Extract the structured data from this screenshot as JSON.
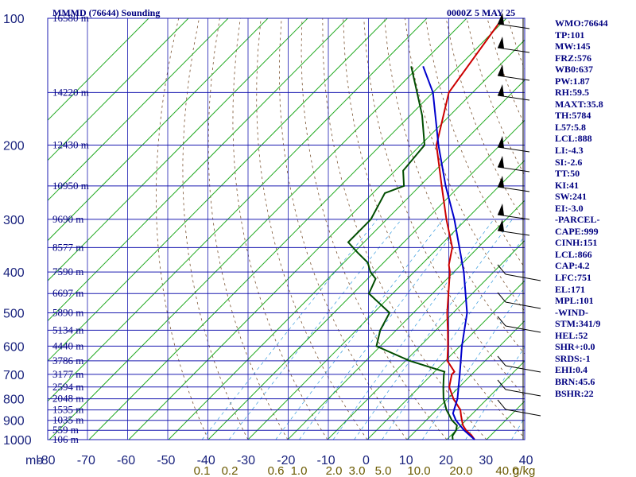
{
  "title_left": "MMMD (76644) Sounding",
  "title_right": "0000Z  5 MAY 25",
  "stats": [
    "WMO:76644",
    "TP:101",
    "MW:145",
    "FRZ:576",
    "WB0:637",
    "PW:1.87",
    "RH:59.5",
    "MAXT:35.8",
    "TH:5784",
    "L57:5.8",
    "LCL:888",
    "LI:-4.3",
    "SI:-2.6",
    "TT:50",
    "KI:41",
    "SW:241",
    "EI:-3.0",
    "-PARCEL-",
    "CAPE:999",
    "CINH:151",
    "LCL:866",
    "CAP:4.2",
    "LFC:751",
    "EL:171",
    "MPL:101",
    "-WIND-",
    "STM:341/9",
    "HEL:52",
    "SHR+:0.0",
    "SRDS:-1",
    "EHI:0.4",
    "BRN:45.6",
    "BSHR:22"
  ],
  "chart_data": {
    "type": "line",
    "chart_kind": "Skew-T log-P sounding",
    "y_axis_unit": "mb",
    "y_log_scale": true,
    "pressure_ticks": [
      100,
      200,
      300,
      400,
      500,
      600,
      700,
      800,
      900,
      1000
    ],
    "height_labels": [
      {
        "p": 100,
        "text": "16580 m"
      },
      {
        "p": 150,
        "text": "14220 m"
      },
      {
        "p": 200,
        "text": "12430 m"
      },
      {
        "p": 250,
        "text": "10950 m"
      },
      {
        "p": 300,
        "text": "9690 m"
      },
      {
        "p": 350,
        "text": "8577 m"
      },
      {
        "p": 400,
        "text": "7590 m"
      },
      {
        "p": 450,
        "text": "6697 m"
      },
      {
        "p": 500,
        "text": "5890 m"
      },
      {
        "p": 550,
        "text": "5134 m"
      },
      {
        "p": 600,
        "text": "4440 m"
      },
      {
        "p": 650,
        "text": "3786 m"
      },
      {
        "p": 700,
        "text": "3177 m"
      },
      {
        "p": 750,
        "text": "2594 m"
      },
      {
        "p": 800,
        "text": "2048 m"
      },
      {
        "p": 850,
        "text": "1535 m"
      },
      {
        "p": 900,
        "text": "1035 m"
      },
      {
        "p": 950,
        "text": "559 m"
      },
      {
        "p": 1000,
        "text": "106 m"
      }
    ],
    "x_axis_unit_label": "mb",
    "temperature_ticks": [
      -80,
      -70,
      -60,
      -50,
      -40,
      -30,
      -20,
      -10,
      0,
      10,
      20,
      30,
      40
    ],
    "mixing_ratio_label_unit": "g/kg",
    "mixing_ratio_labels": [
      "0.1",
      "0.2",
      "0.6",
      "1.0",
      "2.0",
      "3.0",
      "5.0",
      "10.0",
      "20.0",
      "40.0"
    ],
    "grid": true,
    "series": [
      {
        "name": "temperature",
        "color": "#cc0000",
        "points": [
          [
            1000,
            27.0
          ],
          [
            975,
            25.0
          ],
          [
            950,
            22.5
          ],
          [
            925,
            20.5
          ],
          [
            900,
            19.0
          ],
          [
            875,
            17.5
          ],
          [
            850,
            16.0
          ],
          [
            800,
            11.5
          ],
          [
            750,
            7.5
          ],
          [
            700,
            5.0
          ],
          [
            690,
            5.0
          ],
          [
            650,
            0.5
          ],
          [
            600,
            -3.0
          ],
          [
            550,
            -7.0
          ],
          [
            500,
            -11.5
          ],
          [
            450,
            -16.0
          ],
          [
            400,
            -21.0
          ],
          [
            385,
            -23.0
          ],
          [
            350,
            -26.5
          ],
          [
            300,
            -35.0
          ],
          [
            250,
            -44.5
          ],
          [
            200,
            -56.0
          ],
          [
            150,
            -66.0
          ],
          [
            100,
            -71.0
          ]
        ]
      },
      {
        "name": "parcel",
        "color": "#0000cc",
        "points": [
          [
            1000,
            27.0
          ],
          [
            950,
            22.0
          ],
          [
            900,
            17.5
          ],
          [
            866,
            15.0
          ],
          [
            800,
            12.5
          ],
          [
            700,
            7.0
          ],
          [
            600,
            0.5
          ],
          [
            500,
            -6.5
          ],
          [
            400,
            -17.5
          ],
          [
            300,
            -33.0
          ],
          [
            250,
            -43.5
          ],
          [
            200,
            -55.5
          ],
          [
            150,
            -70.0
          ],
          [
            130,
            -79.0
          ]
        ]
      },
      {
        "name": "dewpoint",
        "color": "#004d00",
        "points": [
          [
            1000,
            21.5
          ],
          [
            980,
            20.5
          ],
          [
            950,
            20.0
          ],
          [
            925,
            19.0
          ],
          [
            900,
            16.5
          ],
          [
            850,
            12.5
          ],
          [
            800,
            9.0
          ],
          [
            750,
            6.0
          ],
          [
            700,
            3.0
          ],
          [
            690,
            2.5
          ],
          [
            650,
            -9.0
          ],
          [
            600,
            -21.0
          ],
          [
            550,
            -24.0
          ],
          [
            500,
            -26.0
          ],
          [
            450,
            -36.0
          ],
          [
            415,
            -38.0
          ],
          [
            400,
            -41.0
          ],
          [
            380,
            -44.0
          ],
          [
            360,
            -49.0
          ],
          [
            340,
            -54.0
          ],
          [
            300,
            -54.0
          ],
          [
            260,
            -57.0
          ],
          [
            250,
            -54.0
          ],
          [
            230,
            -58.0
          ],
          [
            200,
            -59.0
          ],
          [
            170,
            -67.0
          ],
          [
            150,
            -74.0
          ],
          [
            130,
            -82.0
          ]
        ]
      }
    ],
    "wind_barbs": true
  }
}
